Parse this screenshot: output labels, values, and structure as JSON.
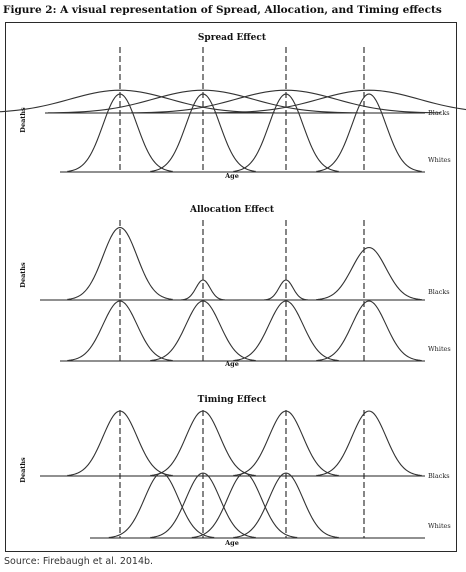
{
  "figure": {
    "title": "Figure 2: A visual representation of Spread, Allocation, and Timing effects",
    "source": "Source: Firebaugh et al. 2014b."
  },
  "chart_data": [
    {
      "type": "line",
      "title": "Spread Effect",
      "xlabel": "Age",
      "ylabel": "Deaths",
      "series": [
        {
          "name": "Blacks",
          "peaks": [
            {
              "center": 1,
              "height": 0.4,
              "spread": "wide"
            },
            {
              "center": 2,
              "height": 0.4,
              "spread": "wide"
            },
            {
              "center": 3,
              "height": 0.4,
              "spread": "wide"
            },
            {
              "center": 4,
              "height": 0.4,
              "spread": "wide"
            }
          ]
        },
        {
          "name": "Whites",
          "peaks": [
            {
              "center": 1,
              "height": 1.0,
              "spread": "narrow"
            },
            {
              "center": 2,
              "height": 1.0,
              "spread": "narrow"
            },
            {
              "center": 3,
              "height": 1.0,
              "spread": "narrow"
            },
            {
              "center": 4,
              "height": 1.0,
              "spread": "narrow"
            }
          ]
        }
      ]
    },
    {
      "type": "line",
      "title": "Allocation Effect",
      "xlabel": "Age",
      "ylabel": "Deaths",
      "series": [
        {
          "name": "Blacks",
          "peaks": [
            {
              "center": 1,
              "height": 1.45,
              "spread": "narrow"
            },
            {
              "center": 2,
              "height": 0.4,
              "spread": "very narrow"
            },
            {
              "center": 3,
              "height": 0.4,
              "spread": "very narrow"
            },
            {
              "center": 4,
              "height": 1.05,
              "spread": "narrow"
            }
          ]
        },
        {
          "name": "Whites",
          "peaks": [
            {
              "center": 1,
              "height": 1.0,
              "spread": "narrow"
            },
            {
              "center": 2,
              "height": 1.0,
              "spread": "narrow"
            },
            {
              "center": 3,
              "height": 1.0,
              "spread": "narrow"
            },
            {
              "center": 4,
              "height": 1.0,
              "spread": "narrow"
            }
          ]
        }
      ]
    },
    {
      "type": "line",
      "title": "Timing Effect",
      "xlabel": "Age",
      "ylabel": "Deaths",
      "series": [
        {
          "name": "Blacks",
          "peaks": [
            {
              "center": 1,
              "height": 1.0,
              "spread": "narrow"
            },
            {
              "center": 2,
              "height": 1.0,
              "spread": "narrow"
            },
            {
              "center": 3,
              "height": 1.0,
              "spread": "narrow"
            },
            {
              "center": 4,
              "height": 1.0,
              "spread": "narrow"
            }
          ]
        },
        {
          "name": "Whites",
          "peaks": [
            {
              "center": 1.5,
              "height": 1.0,
              "spread": "narrow"
            },
            {
              "center": 2.0,
              "height": 1.0,
              "spread": "narrow"
            },
            {
              "center": 2.5,
              "height": 1.0,
              "spread": "narrow"
            },
            {
              "center": 3.0,
              "height": 1.0,
              "spread": "narrow"
            }
          ]
        }
      ]
    }
  ]
}
